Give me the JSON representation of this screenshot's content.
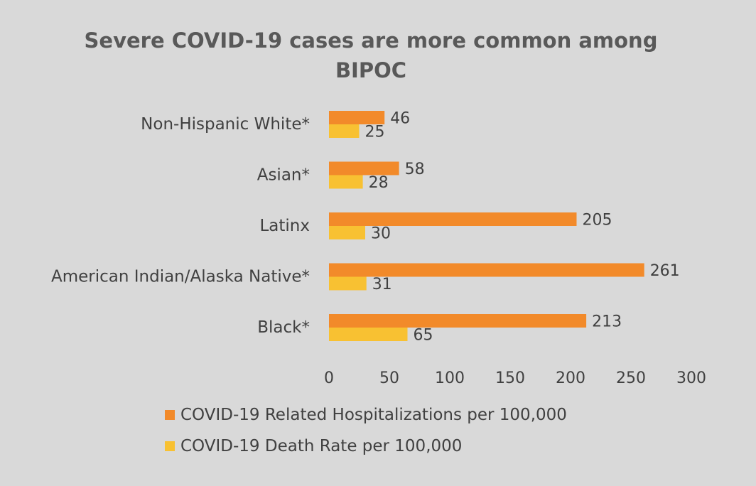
{
  "chart_data": {
    "type": "bar",
    "orientation": "horizontal",
    "title": "Severe COVID-19 cases are more common among BIPOC",
    "title_lines": [
      "Severe COVID-19 cases are more common among",
      "BIPOC"
    ],
    "categories": [
      "Non-Hispanic White*",
      "Asian*",
      "Latinx",
      "American Indian/Alaska Native*",
      "Black*"
    ],
    "series": [
      {
        "name": "COVID-19 Related Hospitalizations per 100,000",
        "values": [
          46,
          58,
          205,
          261,
          213
        ],
        "color": "#f28a2a"
      },
      {
        "name": "COVID-19 Death Rate per 100,000",
        "values": [
          25,
          28,
          30,
          31,
          65
        ],
        "color": "#f8c132"
      }
    ],
    "xlim": [
      0,
      300
    ],
    "xticks": [
      0,
      50,
      100,
      150,
      200,
      250,
      300
    ],
    "xlabel": "",
    "ylabel": "",
    "grid": false,
    "data_labels": true,
    "legend_position": "bottom",
    "background_color": "#d9d9d9",
    "text_color": "#404040",
    "title_color": "#595959"
  }
}
